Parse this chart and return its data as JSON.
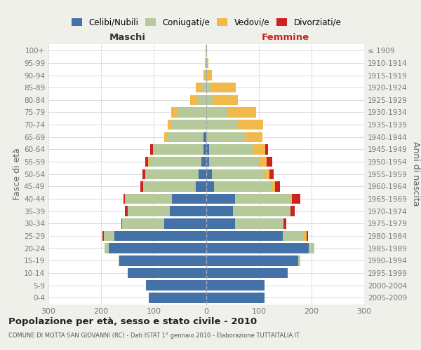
{
  "age_groups": [
    "0-4",
    "5-9",
    "10-14",
    "15-19",
    "20-24",
    "25-29",
    "30-34",
    "35-39",
    "40-44",
    "45-49",
    "50-54",
    "55-59",
    "60-64",
    "65-69",
    "70-74",
    "75-79",
    "80-84",
    "85-89",
    "90-94",
    "95-99",
    "100+"
  ],
  "birth_years": [
    "2005-2009",
    "2000-2004",
    "1995-1999",
    "1990-1994",
    "1985-1989",
    "1980-1984",
    "1975-1979",
    "1970-1974",
    "1965-1969",
    "1960-1964",
    "1955-1959",
    "1950-1954",
    "1945-1949",
    "1940-1944",
    "1935-1939",
    "1930-1934",
    "1925-1929",
    "1920-1924",
    "1915-1919",
    "1910-1914",
    "≤ 1909"
  ],
  "maschi": {
    "celibi": [
      110,
      115,
      150,
      165,
      185,
      175,
      80,
      70,
      65,
      20,
      15,
      10,
      5,
      5,
      0,
      0,
      0,
      0,
      0,
      0,
      0
    ],
    "coniugati": [
      0,
      0,
      0,
      2,
      8,
      20,
      80,
      80,
      90,
      100,
      100,
      100,
      95,
      70,
      65,
      55,
      18,
      8,
      3,
      2,
      1
    ],
    "vedovi": [
      0,
      0,
      0,
      0,
      0,
      0,
      0,
      0,
      0,
      0,
      1,
      1,
      2,
      5,
      8,
      12,
      13,
      12,
      3,
      1,
      0
    ],
    "divorziati": [
      0,
      0,
      0,
      0,
      0,
      2,
      2,
      5,
      3,
      5,
      5,
      5,
      5,
      0,
      0,
      0,
      0,
      0,
      0,
      0,
      0
    ]
  },
  "femmine": {
    "nubili": [
      110,
      110,
      155,
      175,
      195,
      145,
      55,
      50,
      55,
      15,
      10,
      5,
      5,
      0,
      0,
      0,
      0,
      0,
      0,
      0,
      0
    ],
    "coniugate": [
      0,
      0,
      0,
      3,
      10,
      40,
      92,
      110,
      105,
      110,
      100,
      95,
      85,
      75,
      60,
      40,
      12,
      8,
      3,
      2,
      1
    ],
    "vedove": [
      0,
      0,
      0,
      0,
      0,
      5,
      0,
      0,
      3,
      5,
      10,
      15,
      22,
      32,
      48,
      55,
      48,
      48,
      8,
      2,
      0
    ],
    "divorziate": [
      0,
      0,
      0,
      0,
      0,
      3,
      5,
      8,
      15,
      10,
      8,
      10,
      5,
      0,
      0,
      0,
      0,
      0,
      0,
      0,
      0
    ]
  },
  "colors": {
    "celibi_nubili": "#4472a8",
    "coniugati": "#b5c99a",
    "vedovi": "#f0b94a",
    "divorziati": "#cc2222"
  },
  "xlim": 300,
  "title": "Popolazione per età, sesso e stato civile - 2010",
  "subtitle": "COMUNE DI MOTTA SAN GIOVANNI (RC) - Dati ISTAT 1° gennaio 2010 - Elaborazione TUTTAITALIA.IT",
  "ylabel_left": "Fasce di età",
  "ylabel_right": "Anni di nascita",
  "xlabel_left": "Maschi",
  "xlabel_right": "Femmine",
  "bg_color": "#f0f0eb",
  "plot_bg": "#ffffff"
}
